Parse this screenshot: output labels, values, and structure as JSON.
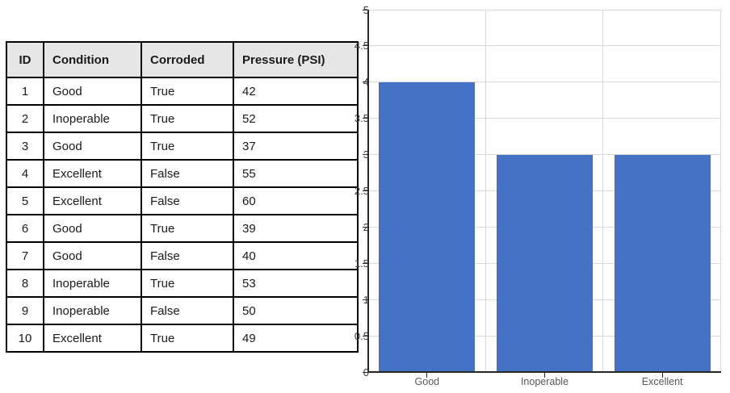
{
  "table": {
    "headers": [
      "ID",
      "Condition",
      "Corroded",
      "Pressure (PSI)"
    ],
    "rows": [
      [
        "1",
        "Good",
        "True",
        "42"
      ],
      [
        "2",
        "Inoperable",
        "True",
        "52"
      ],
      [
        "3",
        "Good",
        "True",
        "37"
      ],
      [
        "4",
        "Excellent",
        "False",
        "55"
      ],
      [
        "5",
        "Excellent",
        "False",
        "60"
      ],
      [
        "6",
        "Good",
        "True",
        "39"
      ],
      [
        "7",
        "Good",
        "False",
        "40"
      ],
      [
        "8",
        "Inoperable",
        "True",
        "53"
      ],
      [
        "9",
        "Inoperable",
        "False",
        "50"
      ],
      [
        "10",
        "Excellent",
        "True",
        "49"
      ]
    ],
    "header_bg": "#e7e6e6",
    "border_color": "#000000"
  },
  "chart_data": {
    "type": "bar",
    "categories": [
      "Good",
      "Inoperable",
      "Excellent"
    ],
    "values": [
      4,
      3,
      3
    ],
    "title": "",
    "xlabel": "",
    "ylabel": "",
    "ylim": [
      0,
      5
    ],
    "yticks": [
      0,
      0.5,
      1,
      1.5,
      2,
      2.5,
      3,
      3.5,
      4,
      4.5,
      5
    ],
    "ytick_labels": [
      "0",
      "0.5",
      "1",
      "1.5",
      "2",
      "2.5",
      "3",
      "3.5",
      "4",
      "4.5",
      "5"
    ],
    "grid": true,
    "legend": false,
    "bar_color": "#4472c4",
    "gridline_color": "#d9d9d9",
    "axis_color": "#262626",
    "ytick_label_color": "#3d3d3d",
    "xtick_label_color": "#595959"
  }
}
